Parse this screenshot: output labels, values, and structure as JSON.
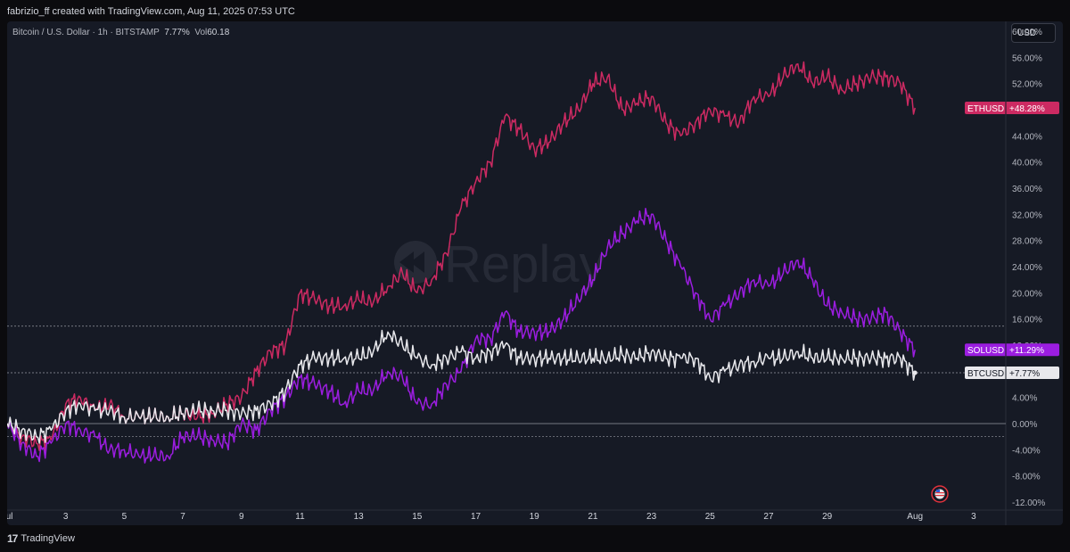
{
  "attribution": "fabrizio_ff created with TradingView.com, Aug 11, 2025 07:53 UTC",
  "symbol": {
    "name": "Bitcoin / U.S. Dollar · 1h · BITSTAMP",
    "change": "7.77%",
    "vol_label": "Vol",
    "vol_value": "60.18"
  },
  "currency": "USD",
  "watermark": "Replay",
  "footer": {
    "logo": "17",
    "brand": "TradingView"
  },
  "colors": {
    "ethusd": "#cc2a62",
    "solusd": "#9b1de0",
    "btcusd": "#e8e8ec",
    "background": "#161a25"
  },
  "chart_data": {
    "type": "line",
    "ylim": [
      -12,
      60
    ],
    "y_ticks": [
      "60.00%",
      "56.00%",
      "52.00%",
      "48.00%",
      "44.00%",
      "40.00%",
      "36.00%",
      "32.00%",
      "28.00%",
      "24.00%",
      "20.00%",
      "16.00%",
      "12.00%",
      "4.00%",
      "0.00%",
      "-4.00%",
      "-8.00%",
      "-12.00%"
    ],
    "y_tick_values": [
      60,
      56,
      52,
      48,
      44,
      40,
      36,
      32,
      28,
      24,
      20,
      16,
      12,
      4,
      0,
      -4,
      -8,
      -12
    ],
    "x_ticks": [
      "Jul",
      "3",
      "5",
      "7",
      "9",
      "11",
      "13",
      "15",
      "17",
      "19",
      "21",
      "23",
      "25",
      "27",
      "29",
      "Aug",
      "3"
    ],
    "x_tick_days": [
      1,
      3,
      5,
      7,
      9,
      11,
      13,
      15,
      17,
      19,
      21,
      23,
      25,
      27,
      29,
      32,
      34
    ],
    "xlim": [
      1,
      35.1
    ],
    "series": [
      {
        "name": "ETHUSD",
        "label": "+48.28%",
        "last": 48.28,
        "points": [
          [
            1,
            0
          ],
          [
            1.5,
            -2
          ],
          [
            2,
            -3
          ],
          [
            2.5,
            -2.5
          ],
          [
            3,
            3
          ],
          [
            3.5,
            4
          ],
          [
            4,
            2
          ],
          [
            4.5,
            3
          ],
          [
            5,
            1
          ],
          [
            5.5,
            1
          ],
          [
            6,
            1
          ],
          [
            6.5,
            1
          ],
          [
            7,
            1.5
          ],
          [
            7.5,
            1
          ],
          [
            8,
            1.5
          ],
          [
            8.5,
            3
          ],
          [
            9,
            4
          ],
          [
            9.5,
            8
          ],
          [
            10,
            11
          ],
          [
            10.5,
            12
          ],
          [
            11,
            20
          ],
          [
            11.5,
            19
          ],
          [
            12,
            18
          ],
          [
            12.5,
            18
          ],
          [
            13,
            19
          ],
          [
            13.5,
            18.5
          ],
          [
            14,
            21
          ],
          [
            14.5,
            23
          ],
          [
            15,
            20
          ],
          [
            15.5,
            22
          ],
          [
            16,
            26
          ],
          [
            16.5,
            33
          ],
          [
            17,
            37
          ],
          [
            17.5,
            40
          ],
          [
            18,
            47
          ],
          [
            18.5,
            45
          ],
          [
            19,
            42
          ],
          [
            19.5,
            43
          ],
          [
            20,
            46
          ],
          [
            20.5,
            48
          ],
          [
            21,
            52
          ],
          [
            21.5,
            53
          ],
          [
            22,
            48
          ],
          [
            22.5,
            49
          ],
          [
            23,
            50
          ],
          [
            23.5,
            46
          ],
          [
            24,
            44
          ],
          [
            24.5,
            46
          ],
          [
            25,
            48
          ],
          [
            25.5,
            47
          ],
          [
            26,
            46
          ],
          [
            26.5,
            50
          ],
          [
            27,
            50
          ],
          [
            27.5,
            53
          ],
          [
            28,
            55
          ],
          [
            28.5,
            52
          ],
          [
            29,
            53
          ],
          [
            29.5,
            51
          ],
          [
            30,
            52
          ],
          [
            30.5,
            53
          ],
          [
            31,
            53
          ],
          [
            31.5,
            52
          ],
          [
            32,
            48.28
          ]
        ]
      },
      {
        "name": "SOLUSD",
        "label": "+11.29%",
        "last": 11.29,
        "points": [
          [
            1,
            0
          ],
          [
            1.5,
            -3
          ],
          [
            2,
            -5
          ],
          [
            2.5,
            -3
          ],
          [
            3,
            0
          ],
          [
            3.5,
            -1
          ],
          [
            4,
            -2
          ],
          [
            4.5,
            -4
          ],
          [
            5,
            -4
          ],
          [
            5.5,
            -5
          ],
          [
            6,
            -5
          ],
          [
            6.5,
            -5
          ],
          [
            7,
            -2
          ],
          [
            7.5,
            -2
          ],
          [
            8,
            -2.5
          ],
          [
            8.5,
            -3
          ],
          [
            9,
            0
          ],
          [
            9.5,
            -1
          ],
          [
            10,
            2
          ],
          [
            10.5,
            4
          ],
          [
            11,
            7
          ],
          [
            11.5,
            6
          ],
          [
            12,
            5
          ],
          [
            12.5,
            3
          ],
          [
            13,
            5
          ],
          [
            13.5,
            5
          ],
          [
            14,
            8
          ],
          [
            14.5,
            7
          ],
          [
            15,
            3
          ],
          [
            15.5,
            3
          ],
          [
            16,
            6
          ],
          [
            16.5,
            8
          ],
          [
            17,
            13
          ],
          [
            17.5,
            13
          ],
          [
            18,
            17
          ],
          [
            18.5,
            14
          ],
          [
            19,
            14
          ],
          [
            19.5,
            14
          ],
          [
            20,
            16
          ],
          [
            20.5,
            19
          ],
          [
            21,
            22
          ],
          [
            21.5,
            27
          ],
          [
            22,
            29
          ],
          [
            22.5,
            31
          ],
          [
            23,
            32
          ],
          [
            23.5,
            28
          ],
          [
            24,
            24
          ],
          [
            24.5,
            20
          ],
          [
            25,
            16
          ],
          [
            25.5,
            18
          ],
          [
            26,
            20
          ],
          [
            26.5,
            22
          ],
          [
            27,
            21
          ],
          [
            27.5,
            23
          ],
          [
            28,
            25
          ],
          [
            28.5,
            22
          ],
          [
            29,
            18
          ],
          [
            29.5,
            17
          ],
          [
            30,
            16
          ],
          [
            30.5,
            16
          ],
          [
            31,
            17
          ],
          [
            31.5,
            14
          ],
          [
            32,
            11.29
          ]
        ]
      },
      {
        "name": "BTCUSD",
        "label": "+7.77%",
        "last": 7.77,
        "points": [
          [
            1,
            0
          ],
          [
            1.5,
            -1
          ],
          [
            2,
            -2
          ],
          [
            2.5,
            -1
          ],
          [
            3,
            2
          ],
          [
            3.5,
            3
          ],
          [
            4,
            2
          ],
          [
            4.5,
            2
          ],
          [
            5,
            1
          ],
          [
            5.5,
            1
          ],
          [
            6,
            1
          ],
          [
            6.5,
            1
          ],
          [
            7,
            1.5
          ],
          [
            7.5,
            2
          ],
          [
            8,
            2
          ],
          [
            8.5,
            2
          ],
          [
            9,
            1.5
          ],
          [
            9.5,
            2
          ],
          [
            10,
            3
          ],
          [
            10.5,
            5
          ],
          [
            11,
            9
          ],
          [
            11.5,
            10
          ],
          [
            12,
            10
          ],
          [
            12.5,
            10
          ],
          [
            13,
            10
          ],
          [
            13.5,
            11
          ],
          [
            14,
            14
          ],
          [
            14.5,
            12
          ],
          [
            15,
            10
          ],
          [
            15.5,
            9
          ],
          [
            16,
            10
          ],
          [
            16.5,
            11
          ],
          [
            17,
            10
          ],
          [
            17.5,
            11
          ],
          [
            18,
            12
          ],
          [
            18.5,
            10
          ],
          [
            19,
            10
          ],
          [
            19.5,
            10
          ],
          [
            20,
            10
          ],
          [
            20.5,
            10
          ],
          [
            21,
            10
          ],
          [
            21.5,
            10
          ],
          [
            22,
            10.5
          ],
          [
            22.5,
            10
          ],
          [
            23,
            11
          ],
          [
            23.5,
            10
          ],
          [
            24,
            10
          ],
          [
            24.5,
            10
          ],
          [
            25,
            7
          ],
          [
            25.5,
            8
          ],
          [
            26,
            9
          ],
          [
            26.5,
            9.5
          ],
          [
            27,
            10
          ],
          [
            27.5,
            10
          ],
          [
            28,
            11
          ],
          [
            28.5,
            10
          ],
          [
            29,
            10
          ],
          [
            29.5,
            10
          ],
          [
            30,
            10
          ],
          [
            30.5,
            10
          ],
          [
            31,
            10
          ],
          [
            31.5,
            10
          ],
          [
            32,
            7.77
          ]
        ]
      }
    ],
    "hlines": [
      14.9,
      7.77,
      0,
      -2
    ]
  }
}
